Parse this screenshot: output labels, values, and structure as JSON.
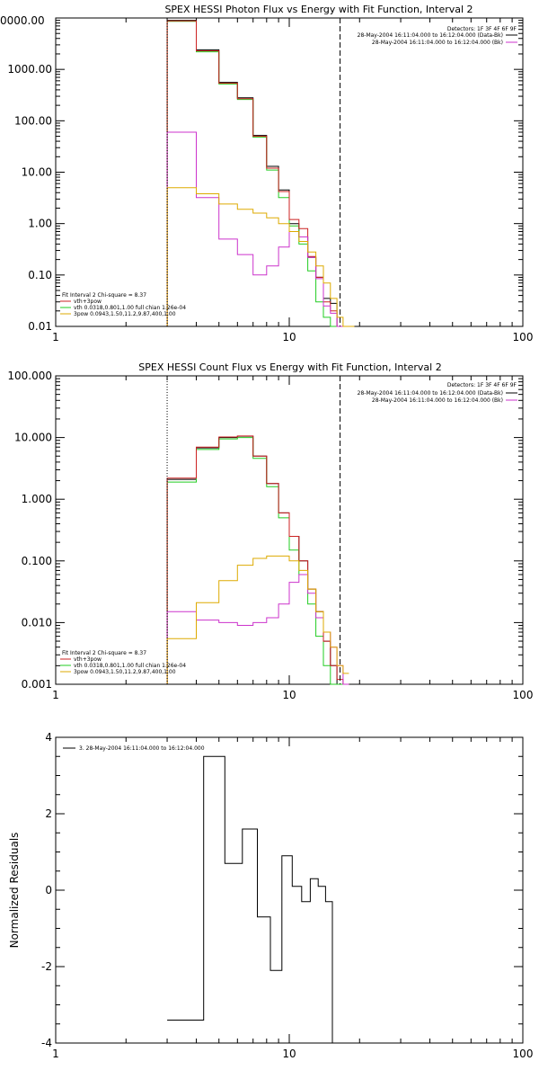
{
  "chart_data": [
    {
      "type": "line",
      "title": "SPEX HESSI Photon Flux vs Energy with Fit Function, Interval 2",
      "xscale": "log",
      "yscale": "log",
      "xlim": [
        1,
        100
      ],
      "ylim": [
        0.01,
        10000
      ],
      "x_ticks": [
        "1",
        "10",
        "100"
      ],
      "y_ticks": [
        "0.01",
        "0.10",
        "1.00",
        "10.00",
        "100.00",
        "1000.00",
        "10000.00"
      ],
      "top_left_partial_label": "0000.00",
      "markers": {
        "dotted_x": 3,
        "dashed_x": 16.5
      },
      "detectors": "Detectors: 1F 3F 4F 6F 9F",
      "top_legend": [
        {
          "text": "28-May-2004 16:11:04.000 to 16:12:04.000 (Data-Bk)",
          "color": "#000000"
        },
        {
          "text": "28-May-2004 16:11:04.000 to 16:12:04.000 (Bk)",
          "color": "#cc33cc"
        }
      ],
      "fit_legend": [
        {
          "text": "Fit Interval 2   Chi-square = 8.37",
          "color": "#000000"
        },
        {
          "text": "vth+3pow",
          "color": "#cc2222"
        },
        {
          "text": "vth 0.0318,0.801,1.00  full chian 1.26e-04",
          "color": "#22cc22"
        },
        {
          "text": "3pow 0.0943,1.50,11.2,9.87,400,1.00",
          "color": "#ddaa00"
        }
      ],
      "bin_edges": [
        3,
        4,
        5,
        6,
        7,
        8,
        9,
        10,
        11,
        12,
        13,
        14,
        15,
        16,
        17,
        18,
        19
      ],
      "series": [
        {
          "color": "#000000",
          "values": [
            9000,
            2400,
            560,
            280,
            52,
            13,
            4.5,
            1.0,
            0.55,
            0.22,
            0.09,
            0.035,
            0.028,
            null,
            null,
            null
          ]
        },
        {
          "color": "#22cc22",
          "values": [
            8600,
            2200,
            520,
            260,
            48,
            11,
            3.2,
            0.9,
            0.4,
            0.12,
            0.03,
            0.015,
            0.008,
            null,
            null,
            null
          ]
        },
        {
          "color": "#cc2222",
          "values": [
            8800,
            2300,
            540,
            270,
            50,
            12,
            4.2,
            1.2,
            0.8,
            0.23,
            0.09,
            0.03,
            0.02,
            0.01,
            null,
            null
          ]
        },
        {
          "color": "#cc33cc",
          "values": [
            60,
            3.2,
            0.5,
            0.25,
            0.1,
            0.15,
            0.35,
            0.7,
            0.55,
            0.22,
            0.085,
            0.025,
            0.018,
            null,
            null,
            null
          ]
        },
        {
          "color": "#ddaa00",
          "values": [
            5.0,
            3.8,
            2.4,
            1.9,
            1.6,
            1.3,
            1.0,
            0.7,
            0.45,
            0.28,
            0.15,
            0.07,
            0.035,
            0.015,
            0.01,
            0.008
          ]
        }
      ]
    },
    {
      "type": "line",
      "title": "SPEX HESSI Count Flux vs Energy with Fit Function, Interval 2",
      "xscale": "log",
      "yscale": "log",
      "xlim": [
        1,
        100
      ],
      "ylim": [
        0.001,
        100
      ],
      "x_ticks": [
        "1",
        "10",
        "100"
      ],
      "y_ticks": [
        "0.001",
        "0.010",
        "0.100",
        "1.000",
        "10.000",
        "100.000"
      ],
      "markers": {
        "dotted_x": 3,
        "dashed_x": 16.5
      },
      "detectors": "Detectors: 1F 3F 4F 6F 9F",
      "top_legend": [
        {
          "text": "28-May-2004 16:11:04.000 to 16:12:04.000 (Data-Bk)",
          "color": "#000000"
        },
        {
          "text": "28-May-2004 16:11:04.000 to 16:12:04.000 (Bk)",
          "color": "#cc33cc"
        }
      ],
      "fit_legend": [
        {
          "text": "Fit Interval 2   Chi-square = 8.37",
          "color": "#000000"
        },
        {
          "text": "vth+3pow",
          "color": "#cc2222"
        },
        {
          "text": "vth 0.0318,0.801,1.00  full chian 1.26e-04",
          "color": "#22cc22"
        },
        {
          "text": "3pow 0.0943,1.50,11.2,9.87,400,1.00",
          "color": "#ddaa00"
        }
      ],
      "bin_edges": [
        3,
        4,
        5,
        6,
        7,
        8,
        9,
        10,
        11,
        12,
        13,
        14,
        15,
        16,
        17,
        18
      ],
      "series": [
        {
          "color": "#000000",
          "values": [
            2.1,
            6.8,
            10,
            10.5,
            5.0,
            1.8,
            0.6,
            0.25,
            0.1,
            0.035,
            0.015,
            0.005,
            0.002,
            null,
            null
          ]
        },
        {
          "color": "#22cc22",
          "values": [
            1.9,
            6.4,
            9.5,
            10,
            4.6,
            1.6,
            0.5,
            0.15,
            0.06,
            0.02,
            0.006,
            0.002,
            0.0009,
            0.0005,
            null
          ]
        },
        {
          "color": "#cc2222",
          "values": [
            2.2,
            7.0,
            10.2,
            10.6,
            5.0,
            1.8,
            0.6,
            0.25,
            0.1,
            0.035,
            0.015,
            0.005,
            0.002,
            0.0012,
            0.0009
          ]
        },
        {
          "color": "#cc33cc",
          "values": [
            0.015,
            0.011,
            0.01,
            0.009,
            0.01,
            0.012,
            0.02,
            0.045,
            0.06,
            0.03,
            0.012,
            0.007,
            0.004,
            0.002,
            null
          ]
        },
        {
          "color": "#ddaa00",
          "values": [
            0.0055,
            0.021,
            0.048,
            0.085,
            0.11,
            0.12,
            0.12,
            0.1,
            0.07,
            0.035,
            0.015,
            0.007,
            0.004,
            0.002,
            0.0015
          ]
        }
      ]
    },
    {
      "type": "line",
      "title": "",
      "xscale": "log",
      "yscale": "linear",
      "xlim": [
        1,
        100
      ],
      "ylim": [
        -4,
        4
      ],
      "x_ticks": [
        "1",
        "10",
        "100"
      ],
      "y_ticks": [
        "-4",
        "-2",
        "0",
        "2",
        "4"
      ],
      "ylabel": "Normalized Residuals",
      "legend": [
        {
          "text": "3. 28-May-2004 16:11:04.000 to 16:12:04.000",
          "color": "#000000"
        }
      ],
      "bin_edges": [
        3,
        4.3,
        5.3,
        6.3,
        7.3,
        8.3,
        9.3,
        10.3,
        11.3,
        12.3,
        13.3,
        14.3,
        15.3,
        16.3,
        17.3
      ],
      "series": [
        {
          "color": "#000000",
          "values": [
            -3.4,
            3.5,
            0.7,
            1.6,
            -0.7,
            -2.1,
            0.9,
            0.1,
            -0.3,
            0.3,
            0.1,
            -0.3,
            null,
            null
          ]
        }
      ]
    }
  ]
}
